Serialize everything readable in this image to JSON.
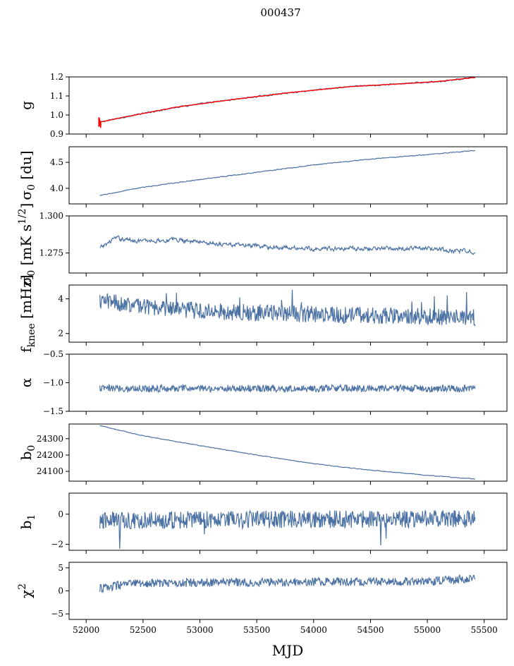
{
  "chart_data": {
    "type": "line",
    "title": "000437",
    "xlabel": "MJD",
    "xlim": [
      51850,
      55700
    ],
    "xticks": [
      "52000",
      "52500",
      "53000",
      "53500",
      "54000",
      "54500",
      "55000",
      "55500"
    ],
    "xtick_values": [
      52000,
      52500,
      53000,
      53500,
      54000,
      54500,
      55000,
      55500
    ],
    "x_start": 52120,
    "x_end": 55420,
    "colors": {
      "series": "#4c72a4",
      "fit": "#ff0000"
    },
    "panels": [
      {
        "id": "g",
        "ylabel": "g",
        "ylim": [
          0.9,
          1.2
        ],
        "yticks": [
          "0.9",
          "1.0",
          "1.1",
          "1.2"
        ],
        "ytick_values": [
          0.9,
          1.0,
          1.1,
          1.2
        ],
        "profile": {
          "x": [
            52120,
            52300,
            52800,
            53300,
            53800,
            54300,
            54800,
            55100,
            55400
          ],
          "y": [
            0.962,
            0.985,
            1.042,
            1.082,
            1.118,
            1.148,
            1.165,
            1.176,
            1.196
          ]
        },
        "noise": 0.003,
        "has_fit": true
      },
      {
        "id": "sigma0-du",
        "ylabel": "σ0 [du]",
        "ylim": [
          3.7,
          4.8
        ],
        "yticks": [
          "4.0",
          "4.5"
        ],
        "ytick_values": [
          4.0,
          4.5
        ],
        "profile": {
          "x": [
            52120,
            52500,
            53000,
            53500,
            54000,
            54500,
            55000,
            55420
          ],
          "y": [
            3.86,
            4.02,
            4.17,
            4.31,
            4.45,
            4.56,
            4.65,
            4.73
          ]
        },
        "noise": 0.006
      },
      {
        "id": "sigma0-mk",
        "ylabel": "σ0 [mK s1/2]",
        "ylim": [
          1.2615,
          1.3
        ],
        "yticks": [
          "1.275",
          "1.300"
        ],
        "ytick_values": [
          1.275,
          1.3
        ],
        "profile": {
          "x": [
            52120,
            52250,
            52500,
            52800,
            53200,
            53600,
            54000,
            54500,
            55000,
            55300,
            55420
          ],
          "y": [
            1.278,
            1.285,
            1.283,
            1.284,
            1.281,
            1.279,
            1.278,
            1.278,
            1.278,
            1.276,
            1.276
          ]
        },
        "noise": 0.0012
      },
      {
        "id": "fknee",
        "ylabel": "fknee [mHz]",
        "ylim": [
          1.5,
          4.8
        ],
        "yticks": [
          "2",
          "4"
        ],
        "ytick_values": [
          2,
          4
        ],
        "profile": {
          "x": [
            52120,
            52500,
            53000,
            54000,
            55000,
            55420
          ],
          "y": [
            3.9,
            3.6,
            3.3,
            3.1,
            3.0,
            2.9
          ]
        },
        "noise": 0.35
      },
      {
        "id": "alpha",
        "ylabel": "α",
        "ylim": [
          -1.5,
          -0.5
        ],
        "yticks": [
          "−1.5",
          "−1.0",
          "−0.5"
        ],
        "ytick_values": [
          -1.5,
          -1.0,
          -0.5
        ],
        "profile": {
          "x": [
            52120,
            55420
          ],
          "y": [
            -1.1,
            -1.1
          ]
        },
        "noise": 0.045
      },
      {
        "id": "b0",
        "ylabel": "b0",
        "ylim": [
          24040,
          24390
        ],
        "yticks": [
          "24100",
          "24200",
          "24300"
        ],
        "ytick_values": [
          24100,
          24200,
          24300
        ],
        "profile": {
          "x": [
            52120,
            52500,
            53000,
            53500,
            54000,
            54500,
            55000,
            55420
          ],
          "y": [
            24380,
            24318,
            24258,
            24200,
            24147,
            24107,
            24076,
            24053
          ]
        },
        "noise": 1.5
      },
      {
        "id": "b1",
        "ylabel": "b1",
        "ylim": [
          -2.4,
          1.4
        ],
        "yticks": [
          "−2",
          "0"
        ],
        "ytick_values": [
          -2,
          0
        ],
        "profile": {
          "x": [
            52120,
            55420
          ],
          "y": [
            -0.4,
            -0.3
          ]
        },
        "noise": 0.42
      },
      {
        "id": "chi2",
        "ylabel": "χ2",
        "ylim": [
          -6.2,
          6.2
        ],
        "yticks": [
          "−5",
          "0",
          "5"
        ],
        "ytick_values": [
          -5,
          0,
          5
        ],
        "profile": {
          "x": [
            52120,
            52400,
            53000,
            54000,
            55000,
            55420
          ],
          "y": [
            0.5,
            1.6,
            1.8,
            2.0,
            2.0,
            2.8
          ]
        },
        "noise": 0.65
      }
    ]
  }
}
